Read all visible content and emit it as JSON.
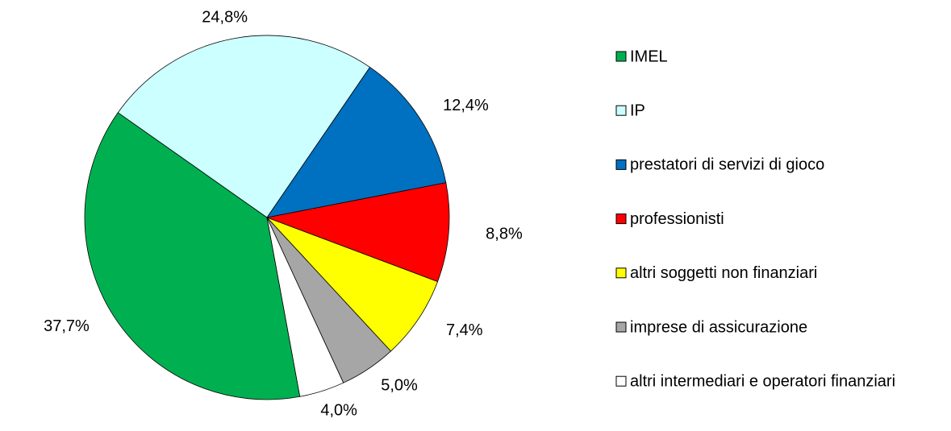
{
  "chart_data": {
    "type": "pie",
    "categories": [
      "IMEL",
      "IP",
      "prestatori di servizi di gioco",
      "professionisti",
      "altri soggetti non finanziari",
      "imprese di assicurazione",
      "altri intermediari e operatori finanziari"
    ],
    "values": [
      37.7,
      24.8,
      12.4,
      8.8,
      7.4,
      5.0,
      4.0
    ],
    "value_labels": [
      "37,7%",
      "24,8%",
      "12,4%",
      "8,8%",
      "7,4%",
      "5,0%",
      "4,0%"
    ],
    "colors": [
      "#00b050",
      "#ccffff",
      "#0070c0",
      "#ff0000",
      "#ffff00",
      "#a6a6a6",
      "#ffffff"
    ],
    "legend": "right"
  }
}
